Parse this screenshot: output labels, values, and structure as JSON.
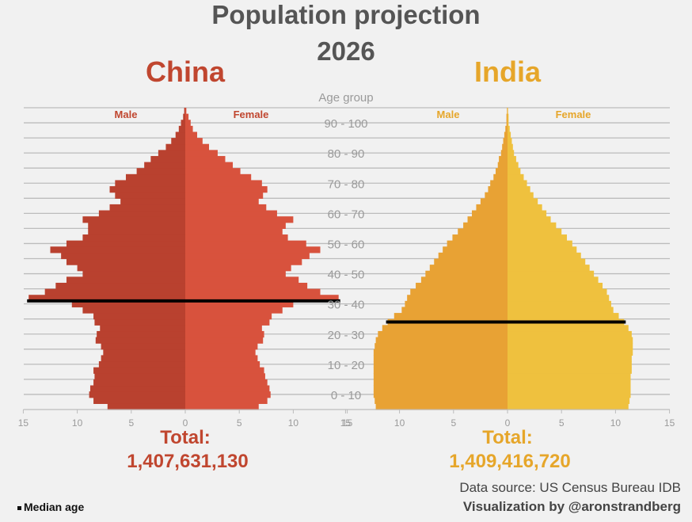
{
  "title_line1": "Population projection",
  "title_line2": "2026",
  "age_group_label": "Age group",
  "source": "Data source: US Census Bureau IDB",
  "credit": "Visualization by @aronstrandberg",
  "median_legend": "Median age",
  "colors": {
    "china_male": "#b9412f",
    "china_female": "#d8523d",
    "india_male": "#e8a234",
    "india_female": "#efc13e",
    "china_text": "#c0462f",
    "india_text": "#e6a62a",
    "median_line": "#000000",
    "grid": "#bcbcbc",
    "text_gray": "#9a9a9a"
  },
  "chart_data": {
    "type": "population_pyramid",
    "title": "Population projection 2026",
    "unit": "million per 1-year age",
    "age_groups": [
      "0 - 10",
      "10 - 20",
      "20 - 30",
      "30 - 40",
      "40 - 50",
      "50 - 60",
      "60 - 70",
      "70 - 80",
      "80 - 90",
      "90 - 100"
    ],
    "xlim": [
      0,
      15
    ],
    "x_ticks": [
      15,
      10,
      5,
      0,
      5,
      10,
      15
    ],
    "ages": [
      0,
      2,
      4,
      6,
      8,
      10,
      12,
      14,
      16,
      18,
      20,
      22,
      24,
      26,
      28,
      30,
      32,
      34,
      36,
      38,
      40,
      42,
      44,
      46,
      48,
      50,
      52,
      54,
      56,
      58,
      60,
      62,
      64,
      66,
      68,
      70,
      72,
      74,
      76,
      78,
      80,
      82,
      84,
      86,
      88,
      90,
      92,
      94,
      96,
      98,
      100
    ],
    "panels": [
      {
        "name": "China",
        "total_label": "Total:",
        "total": "1,407,631,130",
        "male_label": "Male",
        "female_label": "Female",
        "median_age": 36,
        "male": [
          7.2,
          8.5,
          8.9,
          8.8,
          8.5,
          8.4,
          8.5,
          8.0,
          7.8,
          7.6,
          7.8,
          8.3,
          8.2,
          7.9,
          8.4,
          8.5,
          9.5,
          10.5,
          14.5,
          13.0,
          12.0,
          11.0,
          9.5,
          10.0,
          11.0,
          11.5,
          12.5,
          11.0,
          9.5,
          9.0,
          9.0,
          9.5,
          8.0,
          7.0,
          6.0,
          6.5,
          7.0,
          6.5,
          5.5,
          4.5,
          3.8,
          3.2,
          2.5,
          1.8,
          1.3,
          0.9,
          0.6,
          0.4,
          0.2,
          0.1,
          0.0
        ],
        "female": [
          6.8,
          7.6,
          7.9,
          7.8,
          7.6,
          7.4,
          7.3,
          6.9,
          6.7,
          6.5,
          6.7,
          7.2,
          7.3,
          7.1,
          7.8,
          8.0,
          9.0,
          10.0,
          14.2,
          12.5,
          11.3,
          10.5,
          9.3,
          9.8,
          10.8,
          11.5,
          12.5,
          11.2,
          9.5,
          9.0,
          9.3,
          10.0,
          8.5,
          7.5,
          6.8,
          7.2,
          7.6,
          7.1,
          6.1,
          5.1,
          4.4,
          3.7,
          3.0,
          2.2,
          1.6,
          1.1,
          0.7,
          0.5,
          0.3,
          0.1,
          0.0
        ]
      },
      {
        "name": "India",
        "total_label": "Total:",
        "total": "1,409,416,720",
        "male_label": "Male",
        "female_label": "Female",
        "median_age": 29,
        "male": [
          12.2,
          12.3,
          12.4,
          12.4,
          12.4,
          12.4,
          12.4,
          12.4,
          12.4,
          12.4,
          12.3,
          12.2,
          12.0,
          11.6,
          11.1,
          10.5,
          9.8,
          9.5,
          9.3,
          9.0,
          8.5,
          8.0,
          7.6,
          7.2,
          6.8,
          6.4,
          6.0,
          5.6,
          5.1,
          4.6,
          4.1,
          3.7,
          3.3,
          2.9,
          2.5,
          2.1,
          1.8,
          1.6,
          1.3,
          1.1,
          0.9,
          0.8,
          0.6,
          0.5,
          0.4,
          0.3,
          0.2,
          0.1,
          0.1,
          0.05,
          0.0
        ],
        "female": [
          11.2,
          11.3,
          11.4,
          11.4,
          11.4,
          11.4,
          11.5,
          11.5,
          11.5,
          11.6,
          11.6,
          11.6,
          11.5,
          11.2,
          10.8,
          10.3,
          9.8,
          9.6,
          9.4,
          9.2,
          8.8,
          8.4,
          8.0,
          7.6,
          7.2,
          6.8,
          6.4,
          6.0,
          5.5,
          5.0,
          4.5,
          4.0,
          3.6,
          3.2,
          2.8,
          2.4,
          2.1,
          1.8,
          1.5,
          1.2,
          1.0,
          0.8,
          0.6,
          0.5,
          0.4,
          0.3,
          0.2,
          0.1,
          0.1,
          0.05,
          0.0
        ]
      }
    ]
  }
}
